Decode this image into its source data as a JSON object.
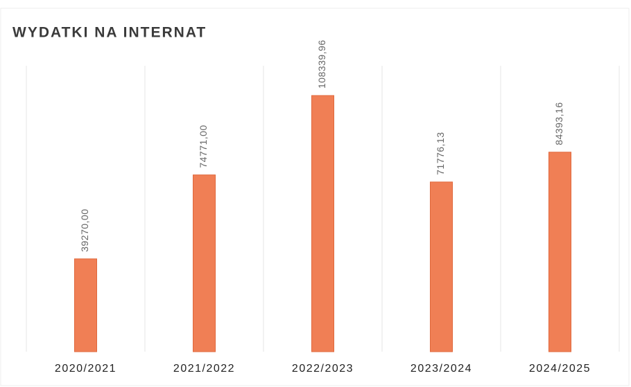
{
  "chart_data": {
    "type": "bar",
    "title": "WYDATKI NA INTERNAT",
    "categories": [
      "2020/2021",
      "2021/2022",
      "2022/2023",
      "2023/2024",
      "2024/2025"
    ],
    "values": [
      39270.0,
      74771.0,
      108339.96,
      71776.13,
      84393.16
    ],
    "value_labels": [
      "39270,00",
      "74771,00",
      "108339,96",
      "71776,13",
      "84393,16"
    ],
    "color": "#f07f55"
  }
}
